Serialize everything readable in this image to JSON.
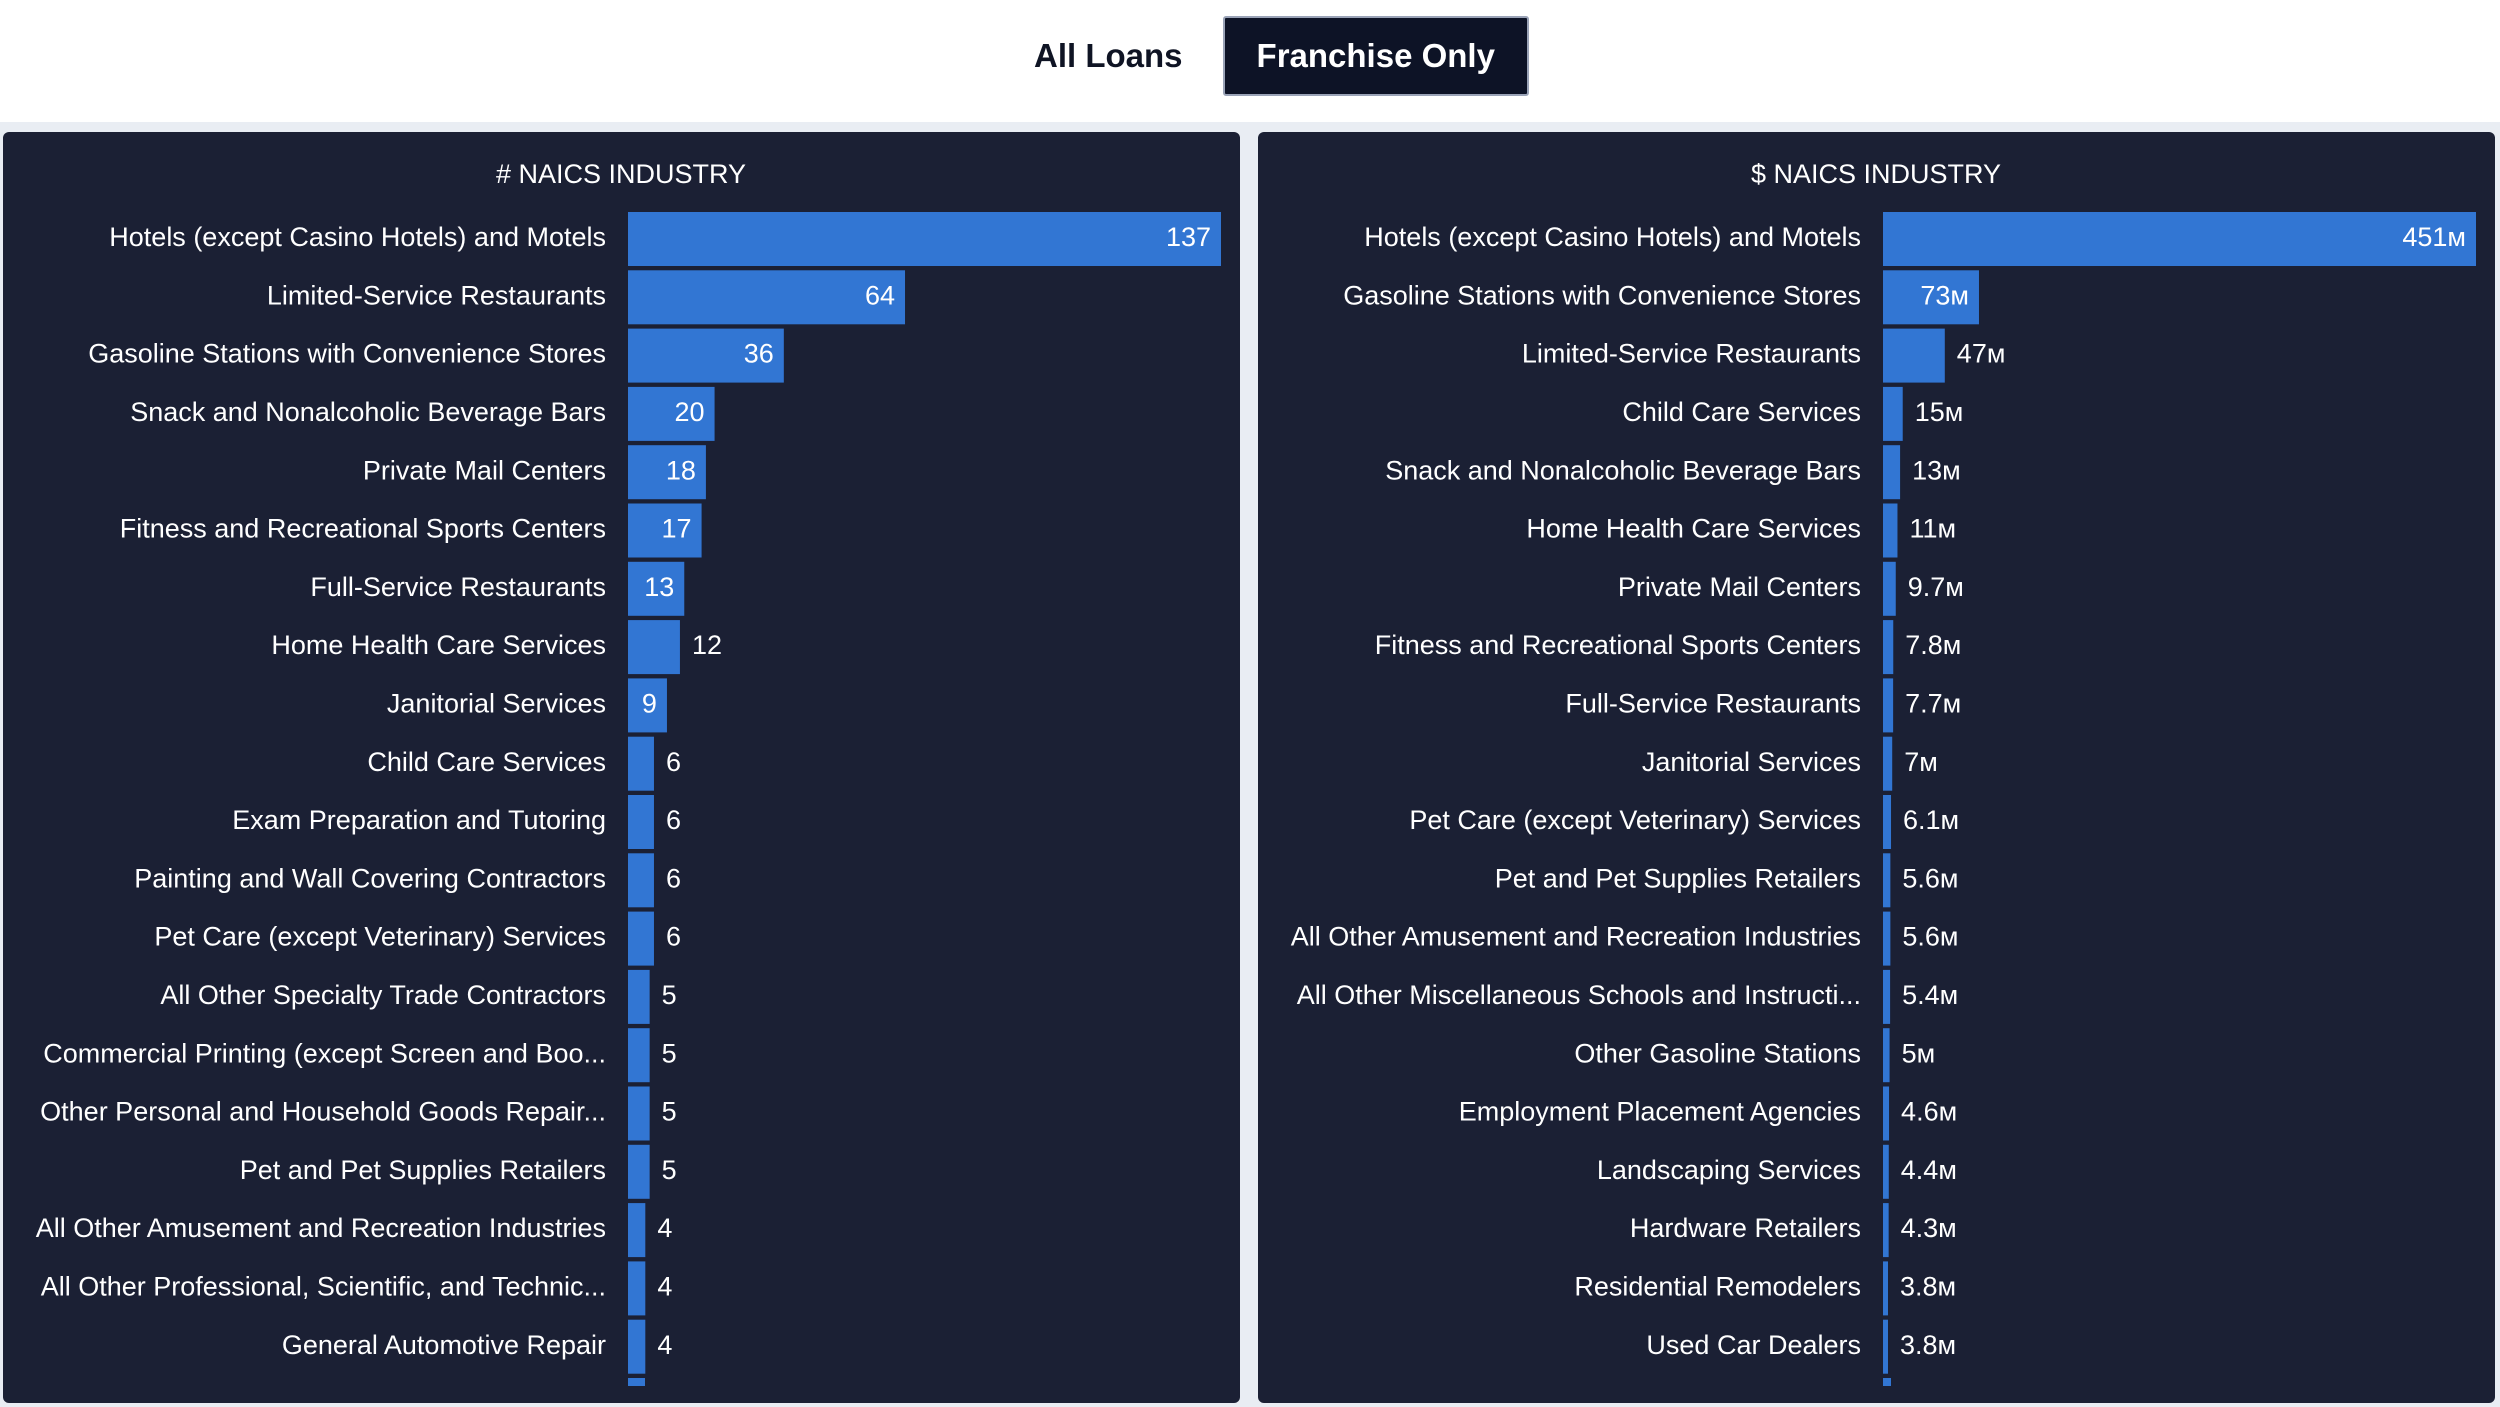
{
  "toggle": {
    "options": [
      "All Loans",
      "Franchise Only"
    ],
    "selected": "Franchise Only"
  },
  "colors": {
    "panel_background": "#1b2034",
    "bar": "#3276d3",
    "text": "#ffffff",
    "page_background": "#e9edf3"
  },
  "chart_data": [
    {
      "type": "bar",
      "orientation": "horizontal",
      "title": "# NAICS INDUSTRY",
      "categories": [
        "Hotels (except Casino Hotels) and Motels",
        "Limited-Service Restaurants",
        "Gasoline Stations with Convenience Stores",
        "Snack and Nonalcoholic Beverage Bars",
        "Private Mail Centers",
        "Fitness and Recreational Sports Centers",
        "Full-Service Restaurants",
        "Home Health Care Services",
        "Janitorial Services",
        "Child Care Services",
        "Exam Preparation and Tutoring",
        "Painting and Wall Covering Contractors",
        "Pet Care (except Veterinary) Services",
        "All Other Specialty Trade Contractors",
        "Commercial Printing (except Screen and Boo...",
        "Other Personal and Household Goods Repair...",
        "Pet and Pet Supplies Retailers",
        "All Other Amusement and Recreation Industries",
        "All Other Professional, Scientific, and Technic...",
        "General Automotive Repair"
      ],
      "values": [
        137,
        64,
        36,
        20,
        18,
        17,
        13,
        12,
        9,
        6,
        6,
        6,
        6,
        5,
        5,
        5,
        5,
        4,
        4,
        4
      ],
      "value_labels": [
        "137",
        "64",
        "36",
        "20",
        "18",
        "17",
        "13",
        "12",
        "9",
        "6",
        "6",
        "6",
        "6",
        "5",
        "5",
        "5",
        "5",
        "4",
        "4",
        "4"
      ],
      "xlim": [
        0,
        137
      ],
      "xlabel": "",
      "ylabel": "",
      "grid": false
    },
    {
      "type": "bar",
      "orientation": "horizontal",
      "title": "$ NAICS INDUSTRY",
      "categories": [
        "Hotels (except Casino Hotels) and Motels",
        "Gasoline Stations with Convenience Stores",
        "Limited-Service Restaurants",
        "Child Care Services",
        "Snack and Nonalcoholic Beverage Bars",
        "Home Health Care Services",
        "Private Mail Centers",
        "Fitness and Recreational Sports Centers",
        "Full-Service Restaurants",
        "Janitorial Services",
        "Pet Care (except Veterinary) Services",
        "Pet and Pet Supplies Retailers",
        "All Other Amusement and Recreation Industries",
        "All Other Miscellaneous Schools and Instructi...",
        "Other Gasoline Stations",
        "Employment Placement Agencies",
        "Landscaping Services",
        "Hardware Retailers",
        "Residential Remodelers",
        "Used Car Dealers"
      ],
      "values": [
        451,
        73,
        47,
        15,
        13,
        11,
        9.7,
        7.8,
        7.7,
        7,
        6.1,
        5.6,
        5.6,
        5.4,
        5,
        4.6,
        4.4,
        4.3,
        3.8,
        3.8
      ],
      "value_labels": [
        "451м",
        "73м",
        "47м",
        "15м",
        "13м",
        "11м",
        "9.7м",
        "7.8м",
        "7.7м",
        "7м",
        "6.1м",
        "5.6м",
        "5.6м",
        "5.4м",
        "5м",
        "4.6м",
        "4.4м",
        "4.3м",
        "3.8м",
        "3.8м"
      ],
      "unit": "M",
      "xlim": [
        0,
        451
      ],
      "xlabel": "",
      "ylabel": "",
      "grid": false
    }
  ]
}
